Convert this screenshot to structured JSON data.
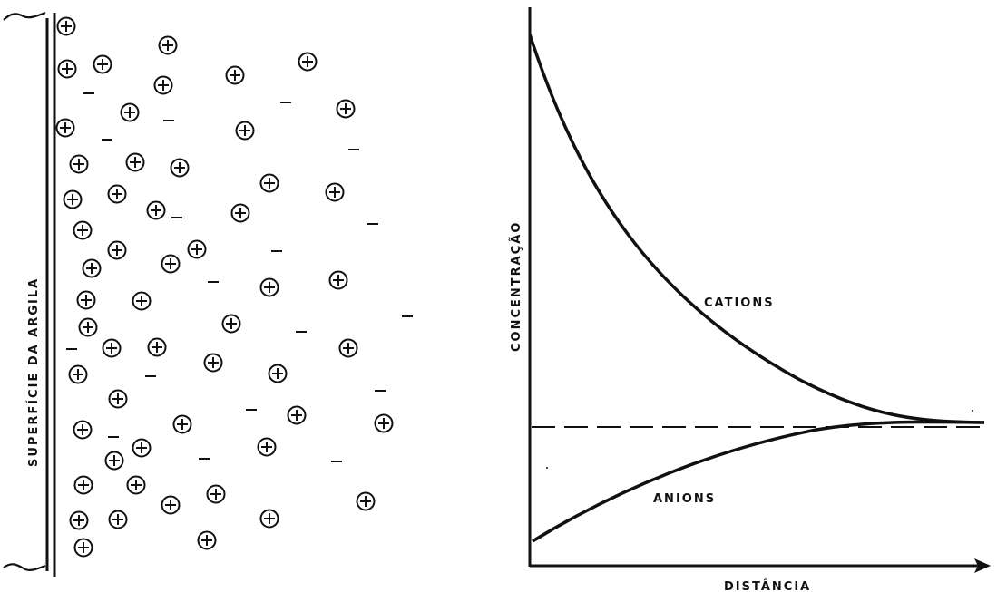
{
  "diagram": {
    "surface_label": "SUPERFÍCIE DA ARGILA",
    "concentration_label": "CONCENTRAÇÃO",
    "distance_label": "DISTÂNCIA",
    "cations_label": "CATIONS",
    "anions_label": "ANIONS",
    "cation_symbol": "+",
    "anion_symbol": "–",
    "ink_color": "#111111"
  }
}
